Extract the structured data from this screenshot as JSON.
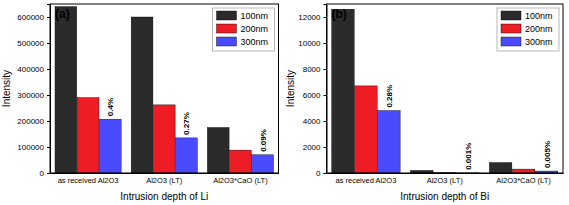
{
  "chart_data": [
    {
      "type": "bar",
      "title": "(a)",
      "x_label": "Intrusion depth of Li",
      "y_label": "Intensity",
      "categories": [
        "as received Al2O3",
        "Al2O3 (LT)",
        "Al2O3*CaO (LT)"
      ],
      "series": [
        {
          "name": "100nm",
          "color": "#2b2b2b",
          "values": [
            640000,
            600000,
            175000
          ]
        },
        {
          "name": "200nm",
          "color": "#ee1c24",
          "values": [
            290000,
            262000,
            88000
          ]
        },
        {
          "name": "300nm",
          "color": "#4a4aff",
          "values": [
            207000,
            135000,
            70000
          ]
        }
      ],
      "annotations": [
        "0.4%",
        "0.27%",
        "0.09%"
      ],
      "ylim": [
        0,
        650000
      ],
      "yticks": [
        0,
        100000,
        200000,
        300000,
        400000,
        500000,
        600000
      ],
      "grid": false,
      "legend": "upper right"
    },
    {
      "type": "bar",
      "title": "(b)",
      "x_label": "Intrusion depth of Bi",
      "y_label": "Intensity",
      "categories": [
        "as received Al2O3",
        "Al2O3 (LT)",
        "Al2O3*CaO (LT)"
      ],
      "series": [
        {
          "name": "100nm",
          "color": "#2b2b2b",
          "values": [
            12600,
            200,
            800
          ]
        },
        {
          "name": "200nm",
          "color": "#ee1c24",
          "values": [
            6700,
            30,
            300
          ]
        },
        {
          "name": "300nm",
          "color": "#4a4aff",
          "values": [
            4800,
            10,
            150
          ]
        }
      ],
      "annotations": [
        "0.28%",
        "0.001%",
        "0.005%"
      ],
      "ylim": [
        0,
        13000
      ],
      "yticks": [
        0,
        2000,
        4000,
        6000,
        8000,
        10000,
        12000
      ],
      "grid": false,
      "legend": "upper right"
    }
  ]
}
